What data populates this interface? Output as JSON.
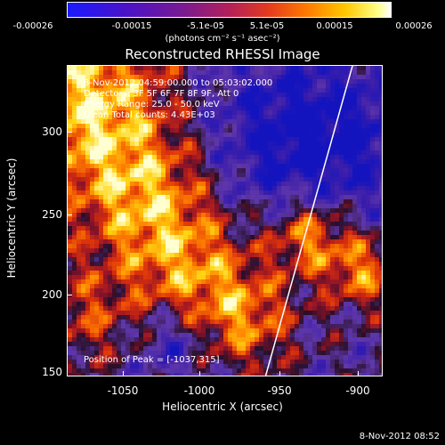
{
  "colorbar": {
    "ticks": [
      "-0.00026",
      "-0.00015",
      "-5.1e-05",
      "5.1e-05",
      "0.00015",
      "0.00026"
    ],
    "units": "(photons cm⁻² s⁻¹ asec⁻²)"
  },
  "title": "Reconstructed RHESSI Image",
  "info": {
    "time": "8-Nov-2012 04:59:00.000 to 05:03:02.000",
    "detectors": "Detectors: 3F 5F 6F 7F 8F 9F, Att 0",
    "energy": "Energy Range: 25.0 - 50.0 keV",
    "clean": "Clean    Total counts: 4.43E+03"
  },
  "peak": "Position of Peak = [-1037,315]",
  "axes": {
    "xlabel": "Heliocentric X (arcsec)",
    "ylabel": "Heliocentric Y (arcsec)",
    "xticks": [
      "-1050",
      "-1000",
      "-950",
      "-900"
    ],
    "yticks": [
      "300",
      "250",
      "200",
      "150"
    ]
  },
  "footer_date": "8-Nov-2012 08:52",
  "colors": {
    "line": "#ffffff",
    "background": "#000000"
  }
}
